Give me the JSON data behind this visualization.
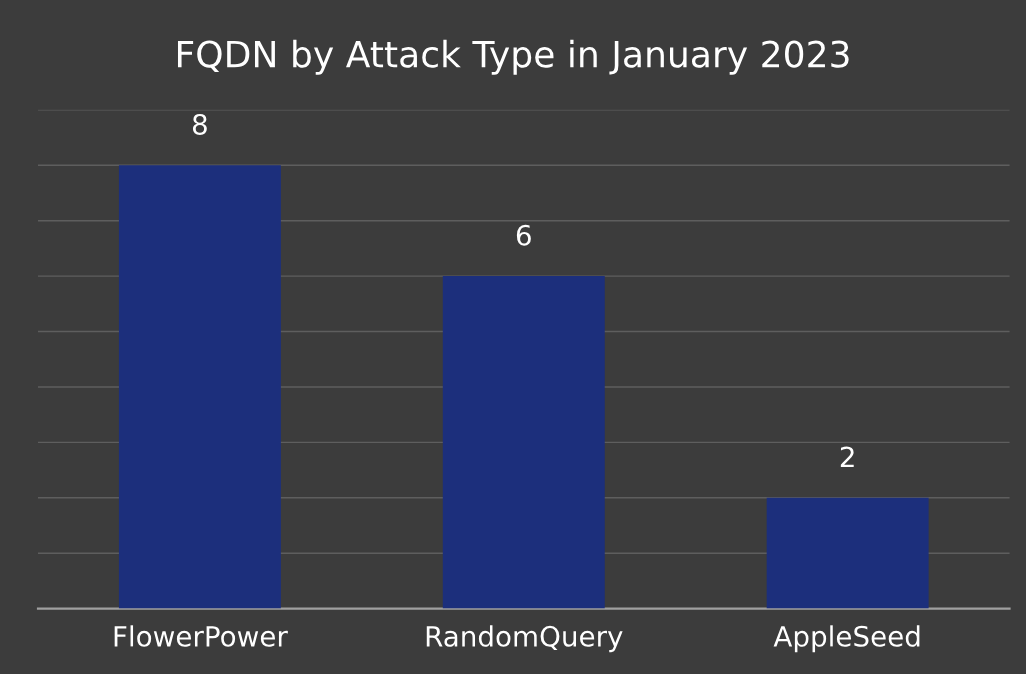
{
  "chart_data": {
    "type": "bar",
    "title": "FQDN by Attack Type in January 2023",
    "categories": [
      "FlowerPower",
      "RandomQuery",
      "AppleSeed"
    ],
    "values": [
      8,
      6,
      2
    ],
    "color": "#1c2f7c",
    "ylim": [
      0,
      9
    ],
    "yticks": [
      {
        "value": 0,
        "label": null
      },
      {
        "value": 1,
        "label": null
      },
      {
        "value": 2,
        "label": null
      },
      {
        "value": 3,
        "label": null
      },
      {
        "value": 4,
        "label": null
      },
      {
        "value": 5,
        "label": null
      },
      {
        "value": 6,
        "label": null
      },
      {
        "value": 7,
        "label": null
      },
      {
        "value": 8,
        "label": null
      },
      {
        "value": 9,
        "label": null
      }
    ],
    "tick_labels": "x",
    "grid": "y",
    "data_labels": true
  }
}
